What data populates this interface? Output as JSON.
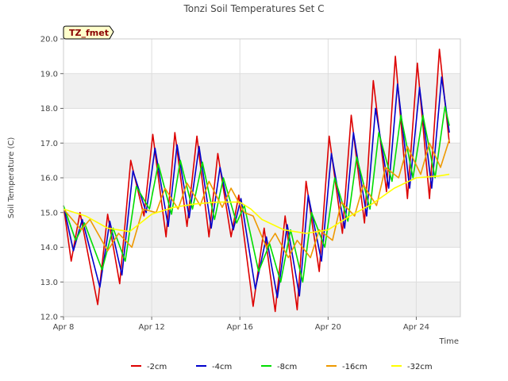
{
  "chart_data": {
    "type": "line",
    "title": "Tonzi Soil Temperatures Set C",
    "xlabel": "Time",
    "ylabel": "Soil Temperature (C)",
    "site_label": "TZ_fmet",
    "ylim": [
      12.0,
      20.0
    ],
    "xlim": [
      0,
      18.0
    ],
    "x_unit": "days since Apr 8",
    "yticks": [
      "12.0",
      "13.0",
      "14.0",
      "15.0",
      "16.0",
      "17.0",
      "18.0",
      "19.0",
      "20.0"
    ],
    "xticks": [
      {
        "label": "Apr 8",
        "day": 0
      },
      {
        "label": "Apr 12",
        "day": 4
      },
      {
        "label": "Apr 16",
        "day": 8
      },
      {
        "label": "Apr 20",
        "day": 12
      },
      {
        "label": "Apr 24",
        "day": 16
      }
    ],
    "grid": true,
    "legend_position": "bottom",
    "series": [
      {
        "name": "-2cm",
        "color": "#dd0000",
        "points": [
          [
            0.0,
            15.2
          ],
          [
            0.35,
            13.6
          ],
          [
            0.75,
            15.0
          ],
          [
            1.55,
            12.35
          ],
          [
            2.0,
            14.95
          ],
          [
            2.55,
            12.95
          ],
          [
            3.05,
            16.5
          ],
          [
            3.65,
            14.9
          ],
          [
            4.05,
            17.25
          ],
          [
            4.65,
            14.3
          ],
          [
            5.05,
            17.3
          ],
          [
            5.6,
            14.6
          ],
          [
            6.05,
            17.2
          ],
          [
            6.6,
            14.3
          ],
          [
            7.0,
            16.7
          ],
          [
            7.6,
            14.3
          ],
          [
            7.95,
            15.5
          ],
          [
            8.6,
            12.3
          ],
          [
            9.1,
            14.55
          ],
          [
            9.6,
            12.15
          ],
          [
            10.05,
            14.9
          ],
          [
            10.6,
            12.2
          ],
          [
            11.0,
            15.9
          ],
          [
            11.6,
            13.3
          ],
          [
            12.05,
            17.2
          ],
          [
            12.65,
            14.4
          ],
          [
            13.05,
            17.8
          ],
          [
            13.65,
            14.7
          ],
          [
            14.05,
            18.8
          ],
          [
            14.65,
            15.6
          ],
          [
            15.05,
            19.5
          ],
          [
            15.6,
            15.4
          ],
          [
            16.05,
            19.3
          ],
          [
            16.6,
            15.4
          ],
          [
            17.05,
            19.7
          ],
          [
            17.5,
            17.0
          ]
        ]
      },
      {
        "name": "-4cm",
        "color": "#0000cc",
        "points": [
          [
            0.0,
            15.2
          ],
          [
            0.45,
            13.9
          ],
          [
            0.85,
            14.8
          ],
          [
            1.65,
            12.85
          ],
          [
            2.1,
            14.75
          ],
          [
            2.65,
            13.2
          ],
          [
            3.15,
            16.2
          ],
          [
            3.75,
            15.0
          ],
          [
            4.15,
            16.85
          ],
          [
            4.75,
            14.6
          ],
          [
            5.15,
            16.95
          ],
          [
            5.7,
            14.85
          ],
          [
            6.15,
            16.9
          ],
          [
            6.7,
            14.55
          ],
          [
            7.1,
            16.3
          ],
          [
            7.7,
            14.5
          ],
          [
            8.05,
            15.4
          ],
          [
            8.7,
            12.8
          ],
          [
            9.2,
            14.3
          ],
          [
            9.7,
            12.55
          ],
          [
            10.15,
            14.65
          ],
          [
            10.7,
            12.6
          ],
          [
            11.1,
            15.5
          ],
          [
            11.7,
            13.6
          ],
          [
            12.15,
            16.7
          ],
          [
            12.75,
            14.55
          ],
          [
            13.15,
            17.3
          ],
          [
            13.75,
            14.9
          ],
          [
            14.15,
            18.0
          ],
          [
            14.75,
            15.7
          ],
          [
            15.15,
            18.7
          ],
          [
            15.7,
            15.7
          ],
          [
            16.15,
            18.6
          ],
          [
            16.7,
            15.7
          ],
          [
            17.15,
            18.9
          ],
          [
            17.5,
            17.3
          ]
        ]
      },
      {
        "name": "-8cm",
        "color": "#00dd00",
        "points": [
          [
            0.0,
            15.2
          ],
          [
            0.55,
            14.2
          ],
          [
            0.95,
            14.7
          ],
          [
            1.75,
            13.35
          ],
          [
            2.25,
            14.55
          ],
          [
            2.8,
            13.6
          ],
          [
            3.3,
            15.75
          ],
          [
            3.9,
            15.1
          ],
          [
            4.3,
            16.4
          ],
          [
            4.9,
            14.95
          ],
          [
            5.3,
            16.5
          ],
          [
            5.85,
            15.1
          ],
          [
            6.3,
            16.45
          ],
          [
            6.85,
            14.8
          ],
          [
            7.25,
            16.0
          ],
          [
            7.85,
            14.7
          ],
          [
            8.2,
            15.2
          ],
          [
            8.85,
            13.3
          ],
          [
            9.35,
            14.1
          ],
          [
            9.85,
            13.0
          ],
          [
            10.3,
            14.5
          ],
          [
            10.85,
            13.0
          ],
          [
            11.25,
            15.0
          ],
          [
            11.85,
            14.0
          ],
          [
            12.3,
            16.0
          ],
          [
            12.9,
            14.75
          ],
          [
            13.3,
            16.6
          ],
          [
            13.9,
            15.1
          ],
          [
            14.3,
            17.3
          ],
          [
            14.9,
            15.9
          ],
          [
            15.3,
            17.8
          ],
          [
            15.85,
            16.0
          ],
          [
            16.3,
            17.8
          ],
          [
            16.85,
            16.0
          ],
          [
            17.3,
            18.05
          ],
          [
            17.5,
            17.5
          ]
        ]
      },
      {
        "name": "-16cm",
        "color": "#ee9900",
        "points": [
          [
            0.0,
            15.1
          ],
          [
            0.8,
            14.5
          ],
          [
            1.2,
            14.8
          ],
          [
            2.0,
            13.9
          ],
          [
            2.5,
            14.4
          ],
          [
            3.1,
            14.0
          ],
          [
            3.6,
            15.1
          ],
          [
            4.2,
            15.0
          ],
          [
            4.6,
            15.7
          ],
          [
            5.2,
            15.1
          ],
          [
            5.6,
            15.85
          ],
          [
            6.2,
            15.2
          ],
          [
            6.6,
            15.9
          ],
          [
            7.2,
            15.15
          ],
          [
            7.6,
            15.7
          ],
          [
            8.2,
            15.0
          ],
          [
            8.6,
            14.9
          ],
          [
            9.2,
            14.0
          ],
          [
            9.6,
            14.4
          ],
          [
            10.2,
            13.7
          ],
          [
            10.6,
            14.2
          ],
          [
            11.2,
            13.7
          ],
          [
            11.6,
            14.5
          ],
          [
            12.2,
            14.2
          ],
          [
            12.6,
            15.3
          ],
          [
            13.2,
            14.9
          ],
          [
            13.6,
            15.8
          ],
          [
            14.2,
            15.2
          ],
          [
            14.6,
            16.3
          ],
          [
            15.2,
            16.0
          ],
          [
            15.6,
            16.9
          ],
          [
            16.2,
            16.1
          ],
          [
            16.6,
            17.0
          ],
          [
            17.1,
            16.3
          ],
          [
            17.5,
            17.1
          ]
        ]
      },
      {
        "name": "-32cm",
        "color": "#ffff00",
        "points": [
          [
            0.0,
            15.1
          ],
          [
            1.0,
            14.9
          ],
          [
            2.0,
            14.55
          ],
          [
            3.0,
            14.45
          ],
          [
            4.0,
            14.95
          ],
          [
            5.0,
            15.15
          ],
          [
            6.0,
            15.25
          ],
          [
            7.0,
            15.3
          ],
          [
            8.0,
            15.3
          ],
          [
            8.5,
            15.1
          ],
          [
            9.0,
            14.8
          ],
          [
            10.0,
            14.5
          ],
          [
            11.0,
            14.4
          ],
          [
            12.0,
            14.5
          ],
          [
            13.0,
            14.9
          ],
          [
            14.0,
            15.25
          ],
          [
            15.0,
            15.7
          ],
          [
            16.0,
            16.0
          ],
          [
            17.0,
            16.05
          ],
          [
            17.5,
            16.1
          ]
        ]
      }
    ]
  }
}
